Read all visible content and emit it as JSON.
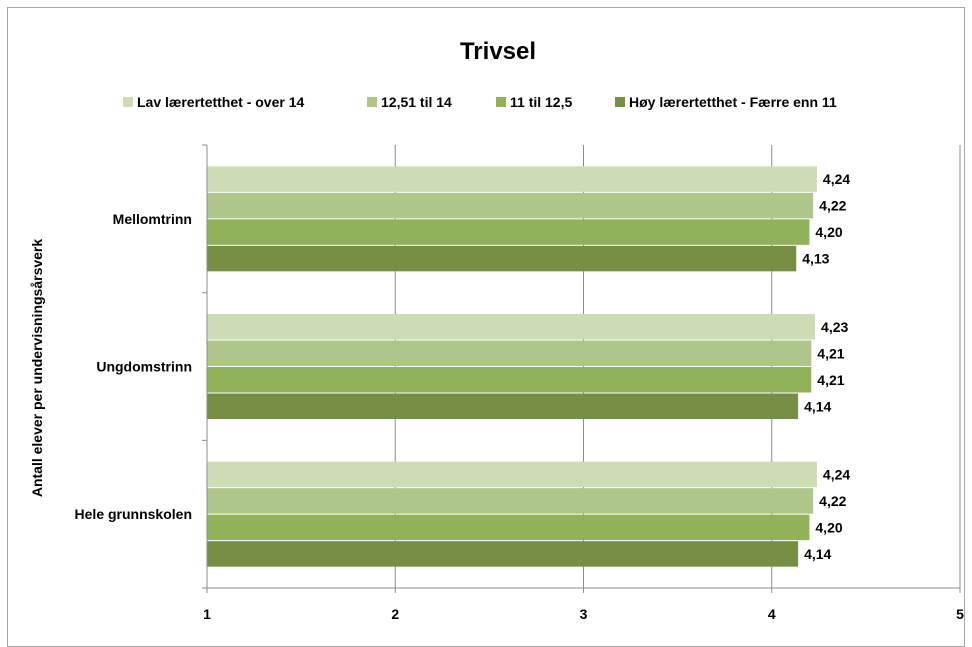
{
  "chart_data": {
    "type": "bar",
    "orientation": "horizontal",
    "title": "Trivsel",
    "ylabel": "Antall elever per undervisningsårsverk",
    "xlabel": "",
    "xlim": [
      1,
      5
    ],
    "x_ticks": [
      "1",
      "2",
      "3",
      "4",
      "5"
    ],
    "grid": "vertical major gridlines",
    "legend_position": "top",
    "categories": [
      "Mellomtrinn",
      "Ungdomstrinn",
      "Hele grunnskolen"
    ],
    "series": [
      {
        "name": "Lav lærertetthet - over 14",
        "color": "#ccdcb4",
        "values": [
          4.24,
          4.23,
          4.24
        ],
        "labels": [
          "4,24",
          "4,23",
          "4,24"
        ]
      },
      {
        "name": "12,51 til 14",
        "color": "#aec68a",
        "values": [
          4.22,
          4.21,
          4.22
        ],
        "labels": [
          "4,22",
          "4,21",
          "4,22"
        ]
      },
      {
        "name": "11 til 12,5",
        "color": "#92b25a",
        "values": [
          4.2,
          4.21,
          4.2
        ],
        "labels": [
          "4,20",
          "4,21",
          "4,20"
        ]
      },
      {
        "name": "Høy lærertetthet - Færre enn 11",
        "color": "#778f45",
        "values": [
          4.13,
          4.14,
          4.14
        ],
        "labels": [
          "4,13",
          "4,14",
          "4,14"
        ]
      }
    ]
  }
}
